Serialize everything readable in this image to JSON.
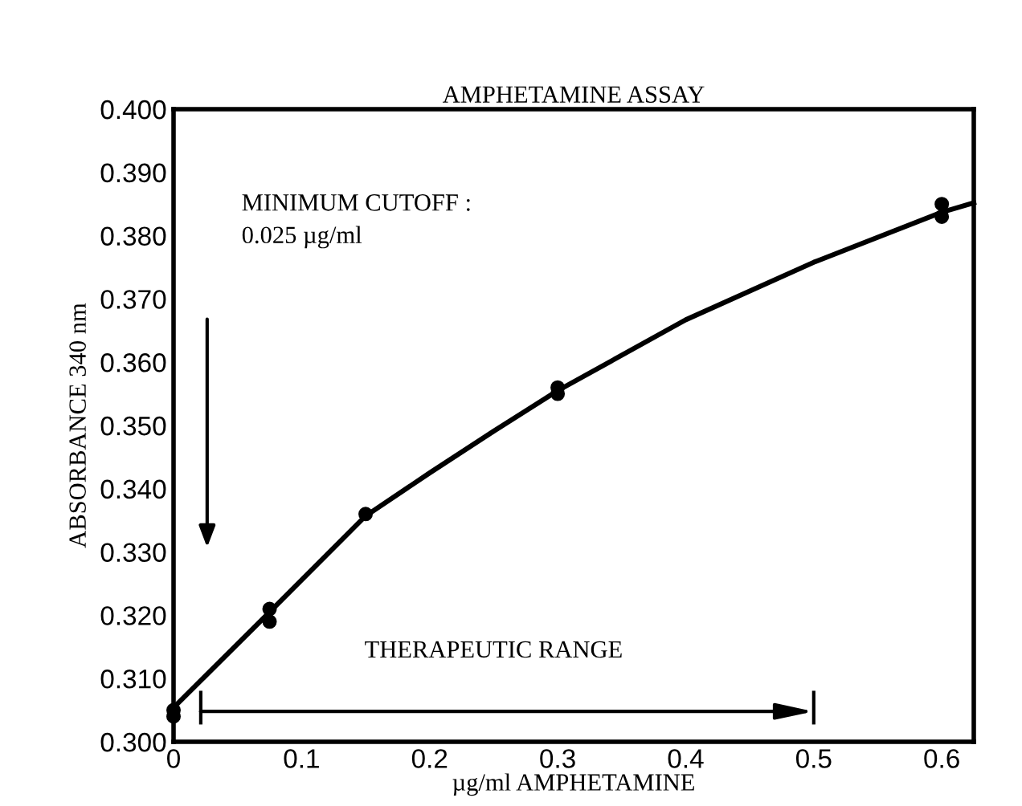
{
  "chart_data": {
    "type": "scatter",
    "title": "AMPHETAMINE ASSAY",
    "xlabel": "µg/ml AMPHETAMINE",
    "ylabel": "ABSORBANCE 340 nm",
    "series": [
      {
        "color": "#000000",
        "marker": "circle",
        "x": [
          0,
          0,
          0.075,
          0.075,
          0.15,
          0.3,
          0.3,
          0.6,
          0.6
        ],
        "values": [
          0.305,
          0.304,
          0.321,
          0.319,
          0.336,
          0.356,
          0.355,
          0.385,
          0.383
        ]
      },
      {
        "type": "line",
        "color": "#000000",
        "marker": "none",
        "line_style": "solid",
        "x": [
          0,
          0.075,
          0.15,
          0.2,
          0.25,
          0.3,
          0.4,
          0.5,
          0.6,
          0.625
        ],
        "values": [
          0.3054,
          0.3205,
          0.3357,
          0.3425,
          0.3491,
          0.3555,
          0.3667,
          0.3758,
          0.3837,
          0.3852
        ]
      }
    ],
    "annotations": [
      "MINIMUM CUTOFF :\n0.025 µg/ml",
      "THERAPEUTIC RANGE"
    ],
    "xlim": [
      0,
      0.625
    ],
    "ylim": [
      0.3,
      0.4
    ],
    "xticks": [
      0,
      0.1,
      0.2,
      0.3,
      0.4,
      0.5,
      0.6
    ],
    "yticks": [
      {
        "value": 0.3,
        "label": "0.300"
      },
      {
        "value": 0.31,
        "label": "0.310"
      },
      {
        "value": 0.32,
        "label": "0.320"
      },
      {
        "value": 0.33,
        "label": "0.330"
      },
      {
        "value": 0.34,
        "label": "0.340"
      },
      {
        "value": 0.35,
        "label": "0.350"
      },
      {
        "value": 0.36,
        "label": "0.360"
      },
      {
        "value": 0.37,
        "label": "0.370"
      },
      {
        "value": 0.38,
        "label": "0.380"
      },
      {
        "value": 0.39,
        "label": "0.390"
      },
      {
        "value": 0.4,
        "label": "0.400"
      }
    ],
    "grid": false,
    "legend": false
  }
}
